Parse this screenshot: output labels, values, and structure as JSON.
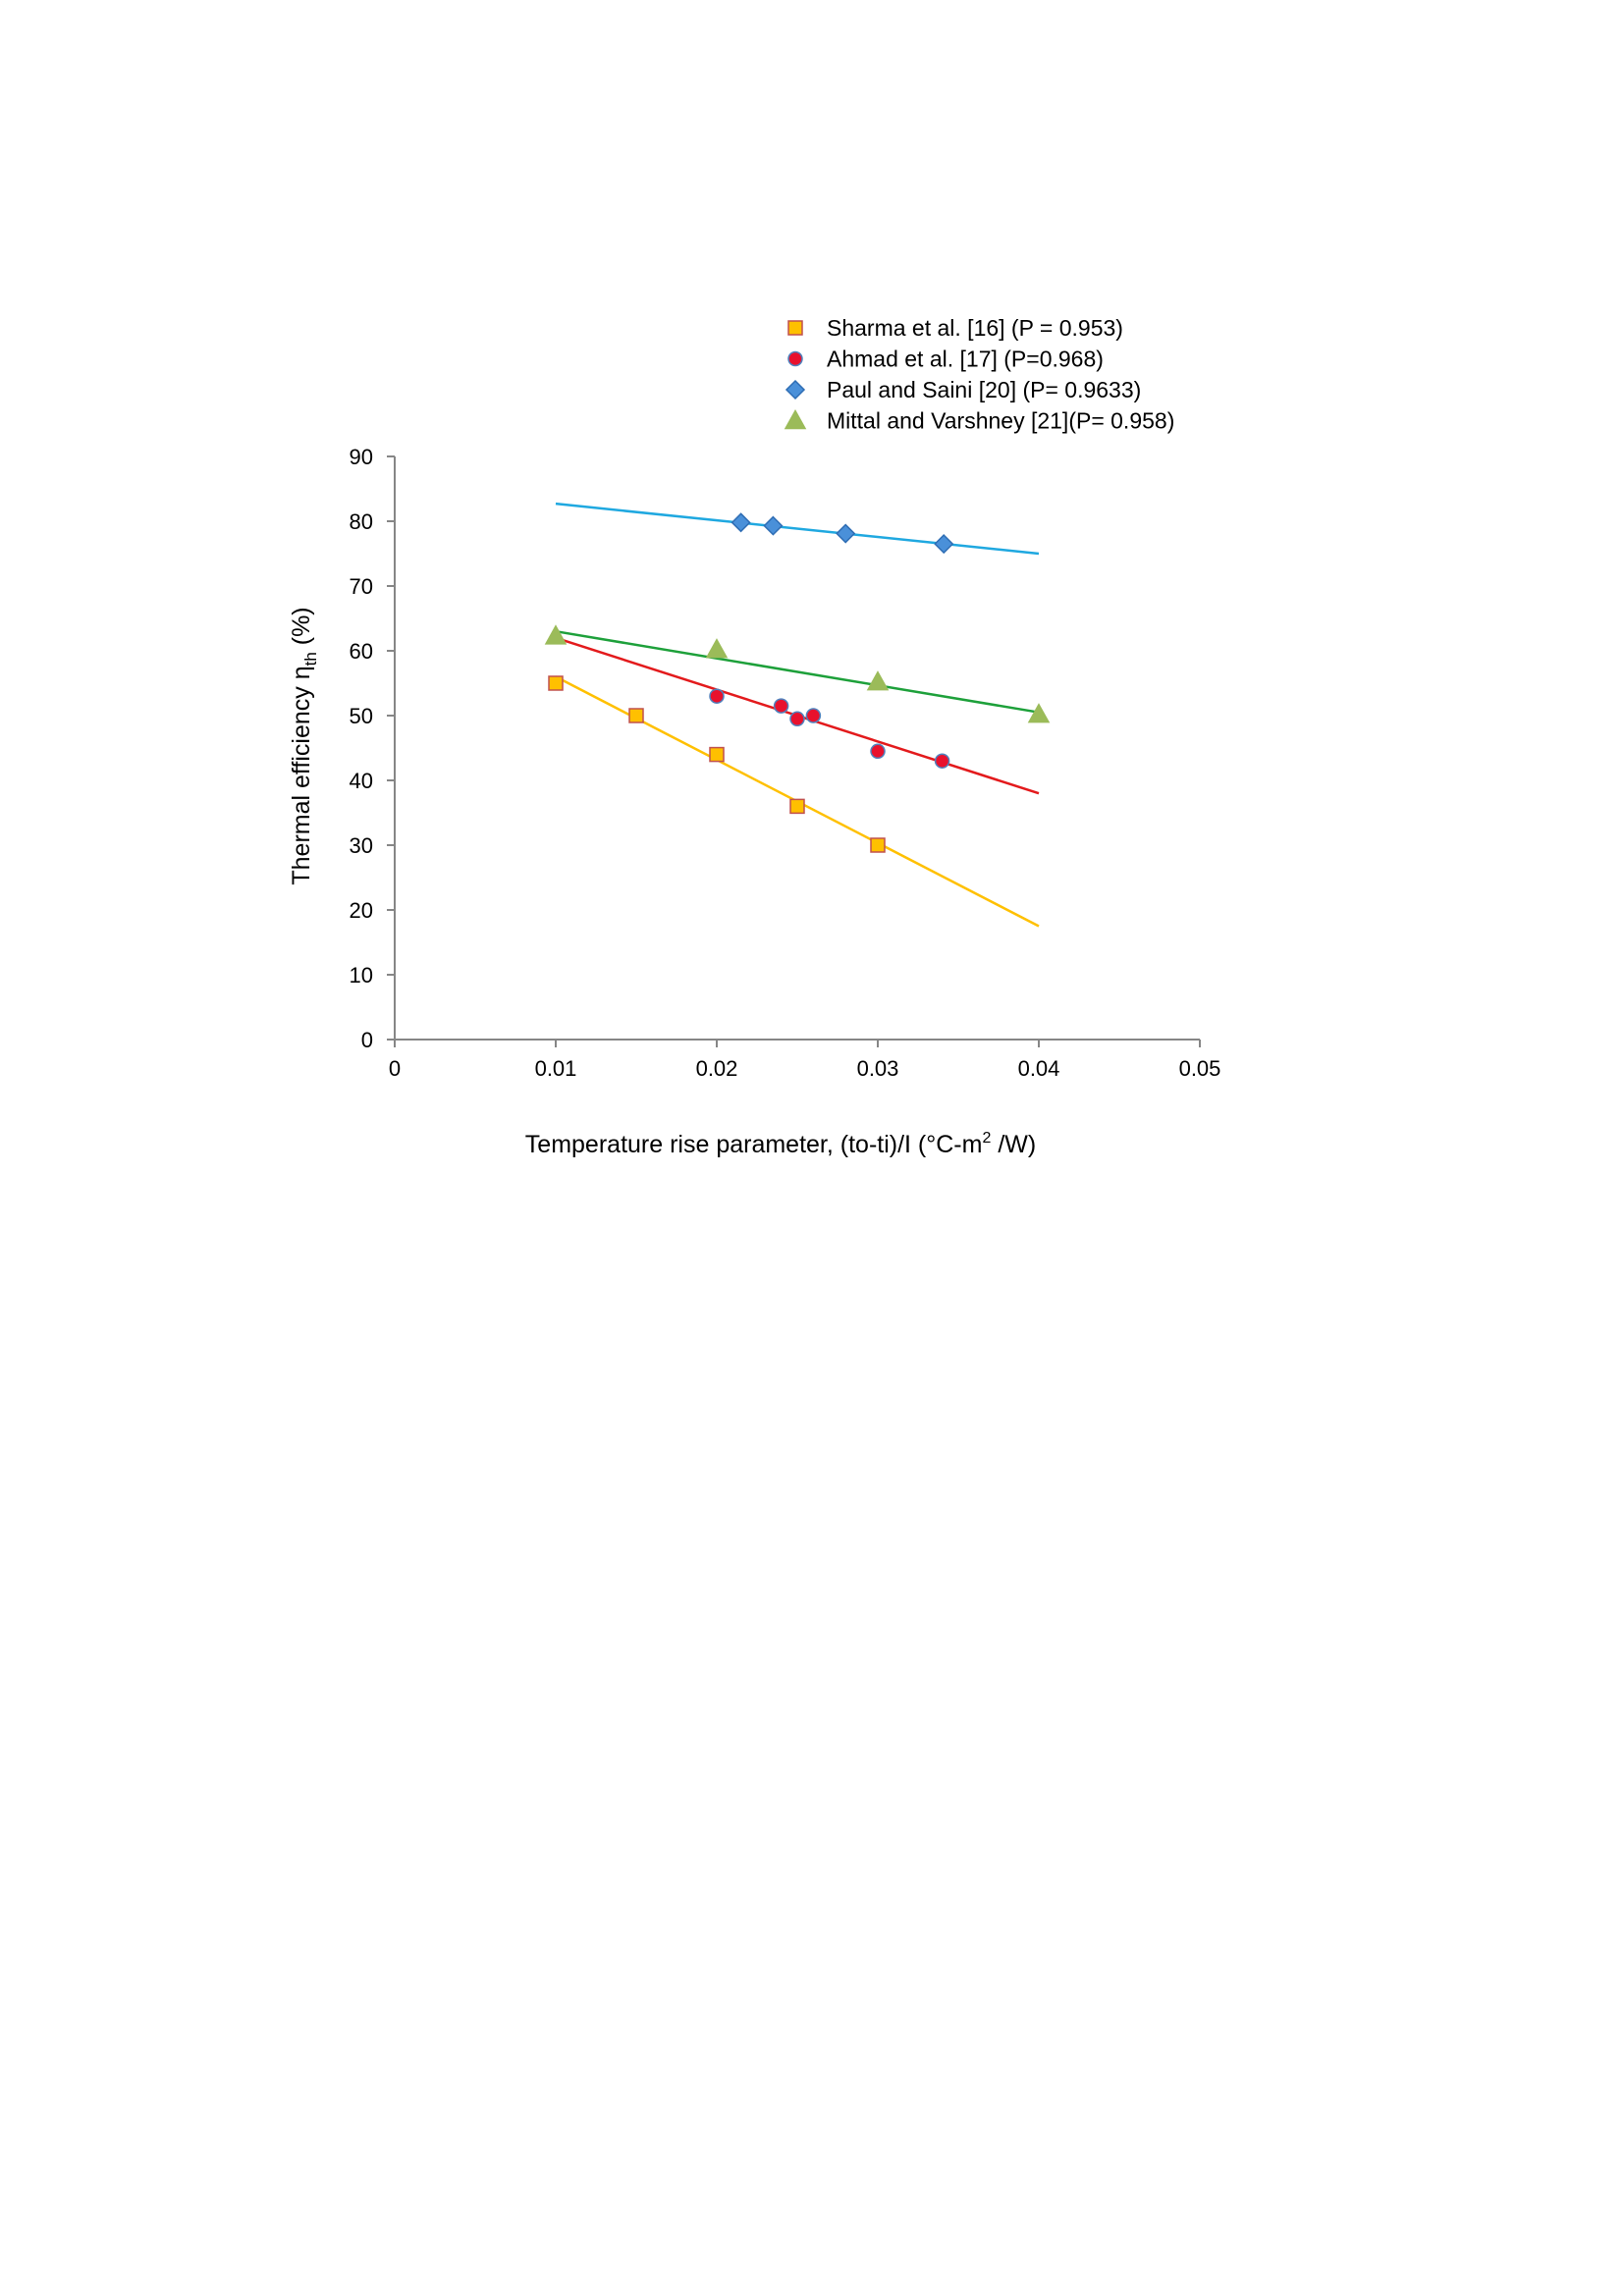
{
  "chart_data": {
    "type": "scatter",
    "title": "",
    "xlabel": {
      "main": "Temperature rise parameter, (to-ti)/I  (°C-m",
      "sup": "2",
      "tail": " /W)"
    },
    "ylabel": {
      "main": "Thermal efficiency η",
      "sub": "th",
      "tail": "  (%)"
    },
    "xlim": [
      0,
      0.05
    ],
    "ylim": [
      0,
      90
    ],
    "xticks": [
      0,
      0.01,
      0.02,
      0.03,
      0.04,
      0.05
    ],
    "xtick_labels": [
      "0",
      "0.01",
      "0.02",
      "0.03",
      "0.04",
      "0.05"
    ],
    "yticks": [
      0,
      10,
      20,
      30,
      40,
      50,
      60,
      70,
      80,
      90
    ],
    "ytick_labels": [
      "0",
      "10",
      "20",
      "30",
      "40",
      "50",
      "60",
      "70",
      "80",
      "90"
    ],
    "grid": false,
    "legend_position": "top",
    "series": [
      {
        "name": "Sharma et al. [16] (P = 0.953)",
        "marker": "square",
        "fill": "#FFC000",
        "edge": "#C0504D",
        "line_color": "#FFC000",
        "points": [
          [
            0.01,
            55
          ],
          [
            0.015,
            50
          ],
          [
            0.02,
            44
          ],
          [
            0.025,
            36
          ],
          [
            0.03,
            30
          ]
        ],
        "trend": [
          [
            0.01,
            56
          ],
          [
            0.04,
            17.5
          ]
        ]
      },
      {
        "name": "Ahmad et al. [17] (P=0.968)",
        "marker": "circle",
        "fill": "#E8112D",
        "edge": "#4F81BD",
        "line_color": "#E31A1C",
        "points": [
          [
            0.02,
            53
          ],
          [
            0.024,
            51.5
          ],
          [
            0.025,
            49.5
          ],
          [
            0.026,
            50
          ],
          [
            0.03,
            44.5
          ],
          [
            0.034,
            43
          ]
        ],
        "trend": [
          [
            0.01,
            62
          ],
          [
            0.04,
            38
          ]
        ]
      },
      {
        "name": "Paul and Saini [20] (P= 0.9633)",
        "marker": "diamond",
        "fill": "#4A90D9",
        "edge": "#2E6DB4",
        "line_color": "#1FA8E0",
        "points": [
          [
            0.0215,
            79.8
          ],
          [
            0.0235,
            79.3
          ],
          [
            0.028,
            78.1
          ],
          [
            0.0341,
            76.5
          ]
        ],
        "trend": [
          [
            0.01,
            82.7
          ],
          [
            0.04,
            75
          ]
        ]
      },
      {
        "name": "Mittal and Varshney [21](P= 0.958)",
        "marker": "triangle",
        "fill": "#9BBB59",
        "edge": "#9BBB59",
        "line_color": "#1DA03A",
        "points": [
          [
            0.01,
            62.3
          ],
          [
            0.02,
            60.2
          ],
          [
            0.03,
            55.2
          ],
          [
            0.04,
            50.2
          ]
        ],
        "trend": [
          [
            0.01,
            63
          ],
          [
            0.04,
            50.5
          ]
        ]
      }
    ]
  }
}
